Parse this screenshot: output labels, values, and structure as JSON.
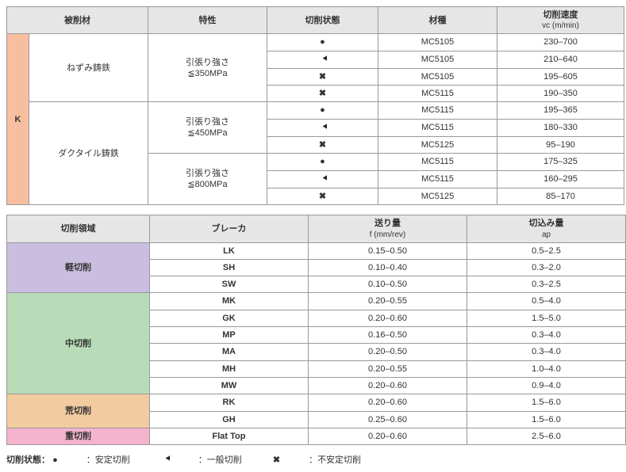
{
  "colors": {
    "header_bg": "#e6e6e6",
    "k_bg": "#f7bfa0",
    "light_bg": "#c9bde0",
    "medium_bg": "#b8dcb8",
    "rough_bg": "#f3cba0",
    "heavy_bg": "#f5b4cd",
    "border": "#999999",
    "text": "#333333"
  },
  "symbols": {
    "stable": "●",
    "general": "pac",
    "unstable": "✖"
  },
  "table1": {
    "headers": {
      "material": "被削材",
      "property": "特性",
      "state": "切削状態",
      "grade": "材種",
      "speed_label": "切削速度",
      "speed_unit": "vc (m/min)"
    },
    "k_label": "K",
    "groups": [
      {
        "material": "ねずみ鋳鉄",
        "properties": [
          {
            "label": "引張り強さ\n≦350MPa",
            "rows": [
              {
                "sym": "stable",
                "grade": "MC5105",
                "speed": "230–700"
              },
              {
                "sym": "general",
                "grade": "MC5105",
                "speed": "210–640"
              },
              {
                "sym": "unstable",
                "grade": "MC5105",
                "speed": "195–605"
              },
              {
                "sym": "unstable",
                "grade": "MC5115",
                "speed": "190–350"
              }
            ]
          }
        ]
      },
      {
        "material": "ダクタイル鋳鉄",
        "properties": [
          {
            "label": "引張り強さ\n≦450MPa",
            "rows": [
              {
                "sym": "stable",
                "grade": "MC5115",
                "speed": "195–365"
              },
              {
                "sym": "general",
                "grade": "MC5115",
                "speed": "180–330"
              },
              {
                "sym": "unstable",
                "grade": "MC5125",
                "speed": "95–190"
              }
            ]
          },
          {
            "label": "引張り強さ\n≦800MPa",
            "rows": [
              {
                "sym": "stable",
                "grade": "MC5115",
                "speed": "175–325"
              },
              {
                "sym": "general",
                "grade": "MC5115",
                "speed": "160–295"
              },
              {
                "sym": "unstable",
                "grade": "MC5125",
                "speed": "85–170"
              }
            ]
          }
        ]
      }
    ]
  },
  "table2": {
    "headers": {
      "region": "切削領域",
      "breaker": "ブレーカ",
      "feed_label": "送り量",
      "feed_unit": "f (mm/rev)",
      "depth_label": "切込み量",
      "depth_unit": "ap"
    },
    "categories": [
      {
        "name": "軽切削",
        "class": "cat-light",
        "rows": [
          {
            "breaker": "LK",
            "feed": "0.15–0.50",
            "depth": "0.5–2.5"
          },
          {
            "breaker": "SH",
            "feed": "0.10–0.40",
            "depth": "0.3–2.0"
          },
          {
            "breaker": "SW",
            "feed": "0.10–0.50",
            "depth": "0.3–2.5"
          }
        ]
      },
      {
        "name": "中切削",
        "class": "cat-medium",
        "rows": [
          {
            "breaker": "MK",
            "feed": "0.20–0.55",
            "depth": "0.5–4.0"
          },
          {
            "breaker": "GK",
            "feed": "0.20–0.60",
            "depth": "1.5–5.0"
          },
          {
            "breaker": "MP",
            "feed": "0.16–0.50",
            "depth": "0.3–4.0"
          },
          {
            "breaker": "MA",
            "feed": "0.20–0.50",
            "depth": "0.3–4.0"
          },
          {
            "breaker": "MH",
            "feed": "0.20–0.55",
            "depth": "1.0–4.0"
          },
          {
            "breaker": "MW",
            "feed": "0.20–0.60",
            "depth": "0.9–4.0"
          }
        ]
      },
      {
        "name": "荒切削",
        "class": "cat-rough",
        "rows": [
          {
            "breaker": "RK",
            "feed": "0.20–0.60",
            "depth": "1.5–6.0"
          },
          {
            "breaker": "GH",
            "feed": "0.25–0.60",
            "depth": "1.5–6.0"
          }
        ]
      },
      {
        "name": "重切削",
        "class": "cat-heavy",
        "rows": [
          {
            "breaker": "Flat Top",
            "feed": "0.20–0.60",
            "depth": "2.5–6.0"
          }
        ]
      }
    ]
  },
  "legend": {
    "title": "切削状態：",
    "stable": "安定切削",
    "general": "一般切削",
    "unstable": "不安定切削"
  }
}
